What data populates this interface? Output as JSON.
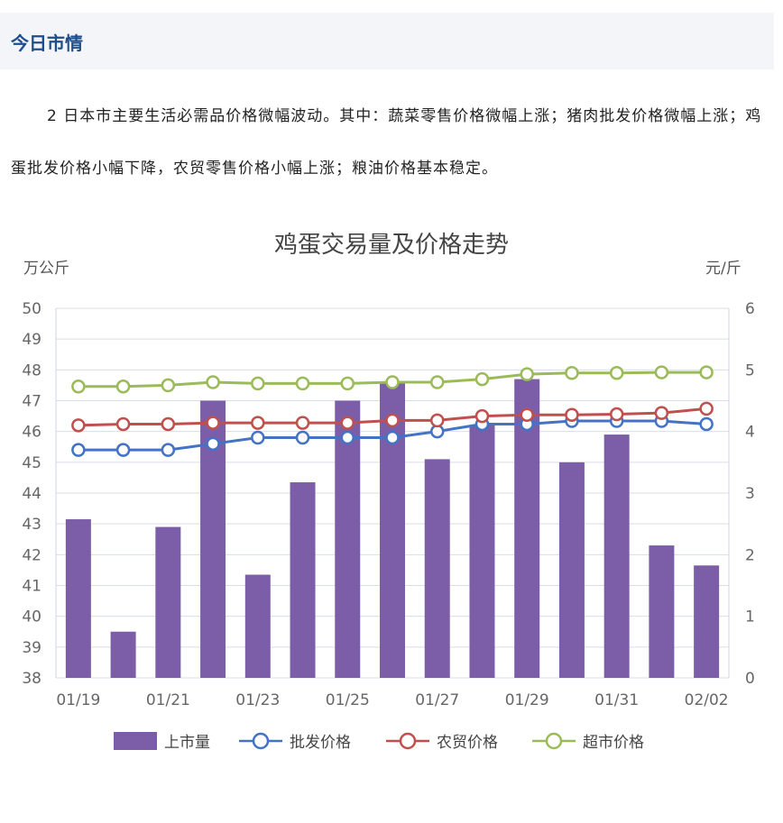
{
  "section_title": "今日市情",
  "paragraph": "2 日本市主要生活必需品价格微幅波动。其中：蔬菜零售价格微幅上涨；猪肉批发价格微幅上涨；鸡蛋批发价格小幅下降，农贸零售价格小幅上涨；粮油价格基本稳定。",
  "chart_data": {
    "type": "bar+line",
    "title": "鸡蛋交易量及价格走势",
    "ylabel_left": "万公斤",
    "ylabel_right": "元/斤",
    "ylim_left": [
      38,
      50
    ],
    "ylim_right": [
      0,
      6
    ],
    "yticks_left": [
      "38",
      "39",
      "40",
      "41",
      "42",
      "43",
      "44",
      "45",
      "46",
      "47",
      "48",
      "49",
      "50"
    ],
    "yticks_right": [
      "0",
      "1",
      "2",
      "3",
      "4",
      "5",
      "6"
    ],
    "categories": [
      "01/19",
      "01/20",
      "01/21",
      "01/22",
      "01/23",
      "01/24",
      "01/25",
      "01/26",
      "01/27",
      "01/28",
      "01/29",
      "01/30",
      "01/31",
      "02/01",
      "02/02"
    ],
    "xtick_labels": [
      "01/19",
      "01/21",
      "01/23",
      "01/25",
      "01/27",
      "01/29",
      "01/31",
      "02/02"
    ],
    "series": [
      {
        "name": "上市量",
        "type": "bar",
        "axis": "left",
        "color": "#7b5ea7",
        "values": [
          43.15,
          39.5,
          42.9,
          47.0,
          41.35,
          44.35,
          47.0,
          47.6,
          45.1,
          46.2,
          47.7,
          45.0,
          45.9,
          42.3,
          41.65
        ]
      },
      {
        "name": "批发价格",
        "type": "line",
        "axis": "right",
        "color": "#4472c4",
        "values": [
          3.7,
          3.7,
          3.7,
          3.8,
          3.9,
          3.9,
          3.9,
          3.9,
          4.0,
          4.12,
          4.12,
          4.17,
          4.17,
          4.17,
          4.12
        ]
      },
      {
        "name": "农贸价格",
        "type": "line",
        "axis": "right",
        "color": "#c0504d",
        "values": [
          4.1,
          4.12,
          4.12,
          4.14,
          4.14,
          4.14,
          4.14,
          4.18,
          4.18,
          4.25,
          4.27,
          4.27,
          4.28,
          4.3,
          4.37
        ]
      },
      {
        "name": "超市价格",
        "type": "line",
        "axis": "right",
        "color": "#9bbb59",
        "values": [
          4.73,
          4.73,
          4.75,
          4.8,
          4.78,
          4.78,
          4.78,
          4.8,
          4.8,
          4.85,
          4.93,
          4.95,
          4.95,
          4.96,
          4.96
        ]
      }
    ],
    "grid": true,
    "legend": "bottom"
  }
}
